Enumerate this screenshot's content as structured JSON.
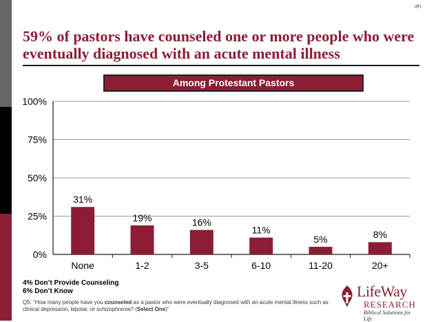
{
  "page_number": "‹#›",
  "title": "59% of pastors have counseled one or more people who were eventually diagnosed with an acute mental illness",
  "banner": "Among Protestant Pastors",
  "notes": [
    "4% Don’t Provide Counseling",
    "6% Don’t Know"
  ],
  "footnote": {
    "prefix": "Q5: “How many people have you ",
    "bold1": "counseled",
    "middle": " as a pastor who were eventually diagnosed with an acute mental illness such as clinical depression, bipolar, or schizophrenia? (",
    "bold2": "Select One",
    "suffix": ")”"
  },
  "logo": {
    "word": "LifeWay",
    "sub": "RESEARCH",
    "tagline": "Biblical Solutions for Life"
  },
  "colors": {
    "bar": "#8b1e35",
    "title": "#8b1e35",
    "axis": "#1a1a1a",
    "grid": "#9a9a9a"
  },
  "chart_data": {
    "type": "bar",
    "categories": [
      "None",
      "1-2",
      "3-5",
      "6-10",
      "11-20",
      "20+"
    ],
    "values": [
      31,
      19,
      16,
      11,
      5,
      8
    ],
    "value_labels": [
      "31%",
      "19%",
      "16%",
      "11%",
      "5%",
      "8%"
    ],
    "ylim": [
      0,
      100
    ],
    "yticks": [
      0,
      25,
      50,
      75,
      100
    ],
    "ytick_labels": [
      "0%",
      "25%",
      "50%",
      "75%",
      "100%"
    ],
    "grid": true,
    "legend": false
  }
}
